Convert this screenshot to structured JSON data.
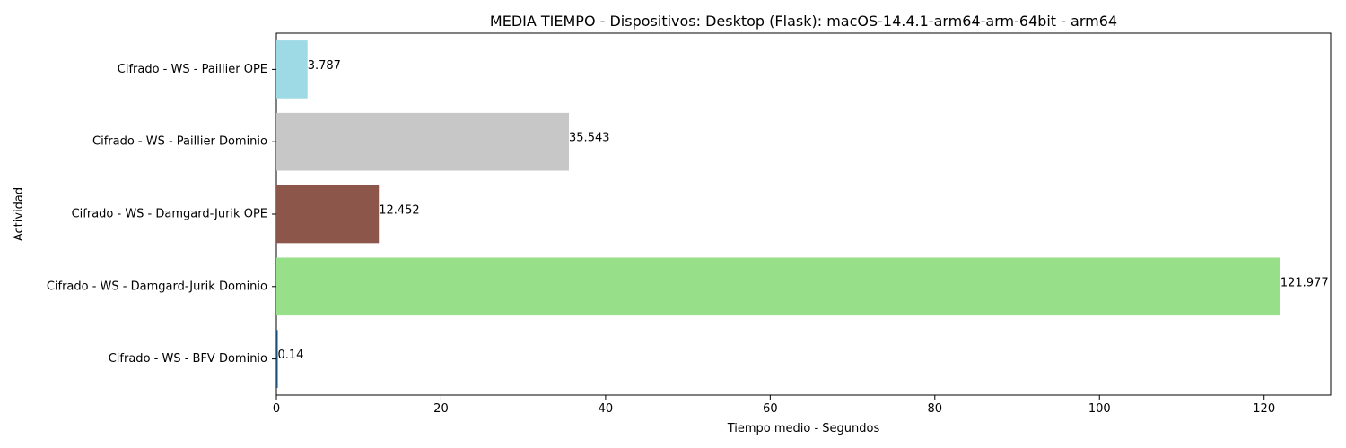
{
  "chart_data": {
    "type": "bar",
    "orientation": "horizontal",
    "title": "MEDIA TIEMPO - Dispositivos: Desktop (Flask): macOS-14.4.1-arm64-arm-64bit - arm64",
    "xlabel": "Tiempo medio - Segundos",
    "ylabel": "Actividad",
    "xlim": [
      0,
      128.1
    ],
    "xticks": [
      0,
      20,
      40,
      60,
      80,
      100,
      120
    ],
    "grid": false,
    "categories": [
      "Cifrado - WS - BFV Dominio",
      "Cifrado - WS - Damgard-Jurik Dominio",
      "Cifrado - WS - Damgard-Jurik OPE",
      "Cifrado - WS - Paillier Dominio",
      "Cifrado - WS - Paillier OPE"
    ],
    "values": [
      0.14,
      121.977,
      12.452,
      35.543,
      3.787
    ],
    "value_labels": [
      "0.14",
      "121.977",
      "12.452",
      "35.543",
      "3.787"
    ],
    "colors": [
      "#1f4e79",
      "#98df8a",
      "#8c564b",
      "#c7c7c7",
      "#9edae5"
    ]
  }
}
